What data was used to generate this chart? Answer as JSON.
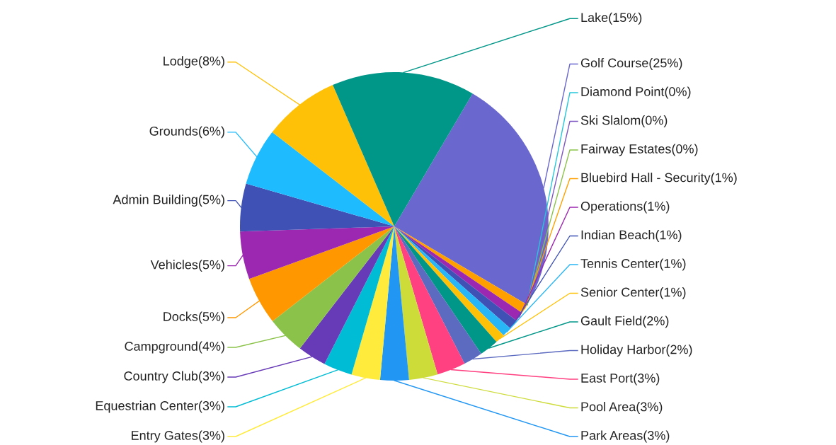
{
  "chart_data": {
    "type": "pie",
    "categories": [
      "Golf Course",
      "Diamond Point",
      "Ski Slalom",
      "Fairway Estates",
      "Bluebird Hall - Security",
      "Operations",
      "Indian Beach",
      "Tennis Center",
      "Senior Center",
      "Gault Field",
      "Holiday Harbor",
      "East Port",
      "Pool Area",
      "Park Areas",
      "Entry Gates",
      "Equestrian Center",
      "Country Club",
      "Campground",
      "Docks",
      "Vehicles",
      "Admin Building",
      "Grounds",
      "Lodge",
      "Lake"
    ],
    "values": [
      25,
      0,
      0,
      0,
      1,
      1,
      1,
      1,
      1,
      2,
      2,
      3,
      3,
      3,
      3,
      3,
      3,
      4,
      5,
      5,
      5,
      6,
      8,
      15
    ],
    "value_labels": [
      "(25%)",
      "(0%)",
      "(0%)",
      "(0%)",
      "(1%)",
      "(1%)",
      "(1%)",
      "(1%)",
      "(1%)",
      "(2%)",
      "(2%)",
      "(3%)",
      "(3%)",
      "(3%)",
      "(3%)",
      "(3%)",
      "(3%)",
      "(4%)",
      "(5%)",
      "(5%)",
      "(5%)",
      "(6%)",
      "(8%)",
      "(15%)"
    ],
    "colors": [
      "#6a67ce",
      "#26c6da",
      "#7e57c2",
      "#8bc34a",
      "#ffa000",
      "#9c27b0",
      "#3f51b5",
      "#29b6f6",
      "#ffc107",
      "#009688",
      "#5c6bc0",
      "#ff4081",
      "#cddc39",
      "#2196f3",
      "#ffeb3b",
      "#00bcd4",
      "#673ab7",
      "#8bc34a",
      "#ff9800",
      "#9c27b0",
      "#3f51b5",
      "#1ebbff",
      "#ffc107",
      "#009688"
    ]
  }
}
